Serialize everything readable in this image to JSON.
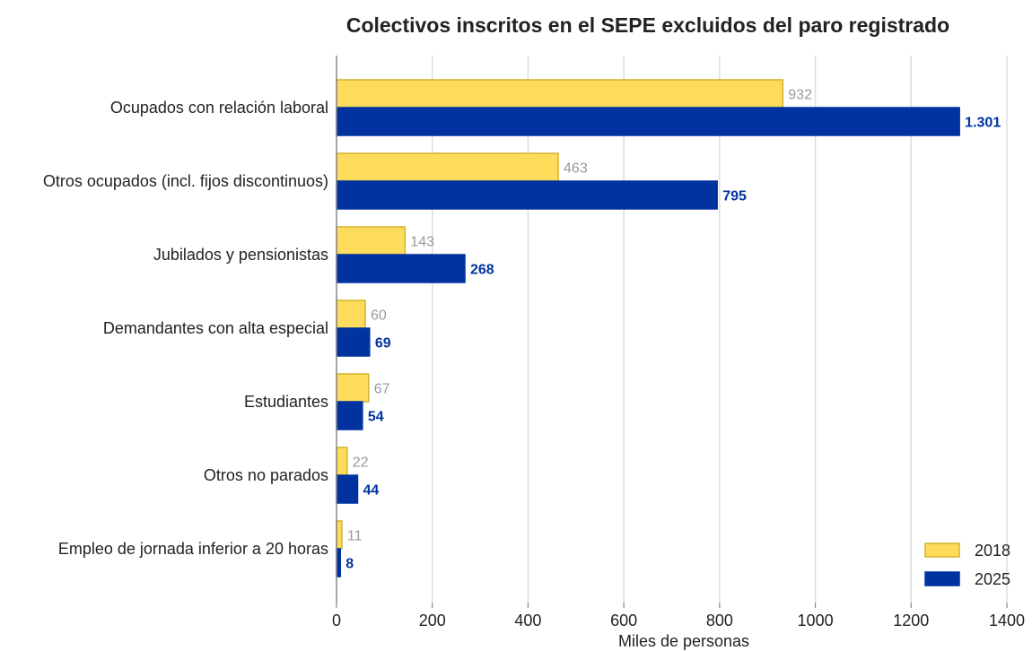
{
  "chart_data": {
    "type": "bar",
    "orientation": "horizontal",
    "title": "Colectivos inscritos en el SEPE excluidos del paro registrado",
    "xlabel": "Miles de personas",
    "ylabel": "",
    "xlim": [
      0,
      1400
    ],
    "x_ticks": [
      "0",
      "200",
      "400",
      "600",
      "800",
      "1000",
      "1200",
      "1400"
    ],
    "grid": "vertical",
    "legend_position": "bottom-right",
    "categories": [
      "Ocupados con relación laboral",
      "Otros ocupados (incl. fijos discontinuos)",
      "Jubilados y pensionistas",
      "Demandantes con alta especial",
      "Estudiantes",
      "Otros no parados",
      "Empleo de jornada inferior a 20 horas"
    ],
    "series": [
      {
        "name": "2018",
        "color": "#FDDC5C",
        "border": "#D4B22A",
        "values": [
          932,
          463,
          143,
          60,
          67,
          22,
          11
        ],
        "labels": [
          "932",
          "463",
          "143",
          "60",
          "67",
          "22",
          "11"
        ]
      },
      {
        "name": "2025",
        "color": "#0033A0",
        "border": "#0033A0",
        "values": [
          1301,
          795,
          268,
          69,
          54,
          44,
          8
        ],
        "labels": [
          "1.301",
          "795",
          "268",
          "69",
          "54",
          "44",
          "8"
        ]
      }
    ]
  }
}
